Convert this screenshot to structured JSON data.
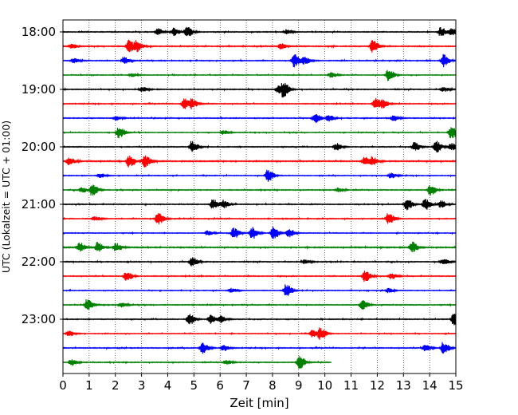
{
  "chart_data": {
    "type": "line",
    "title": "",
    "xlabel": "Zeit  [min]",
    "ylabel": "UTC (Lokalzeit = UTC + 01:00)",
    "xlim": [
      0,
      15
    ],
    "x_ticks": [
      0,
      1,
      2,
      3,
      4,
      5,
      6,
      7,
      8,
      9,
      10,
      11,
      12,
      13,
      14,
      15
    ],
    "x_grid": true,
    "y_ticks": [
      {
        "label": "18:00",
        "trace_index": 0
      },
      {
        "label": "19:00",
        "trace_index": 4
      },
      {
        "label": "20:00",
        "trace_index": 8
      },
      {
        "label": "21:00",
        "trace_index": 12
      },
      {
        "label": "22:00",
        "trace_index": 16
      },
      {
        "label": "23:00",
        "trace_index": 20
      }
    ],
    "colors": [
      "#000000",
      "#ff0000",
      "#0000ff",
      "#008000"
    ],
    "traces": [
      {
        "start": "18:00",
        "color": "#000000",
        "end_min": 15,
        "amp": 0.35,
        "events": [
          [
            3.6,
            0.6
          ],
          [
            4.2,
            0.7
          ],
          [
            4.7,
            1.0
          ],
          [
            8.5,
            0.4
          ],
          [
            14.4,
            0.8
          ],
          [
            14.8,
            0.6
          ]
        ]
      },
      {
        "start": "18:15",
        "color": "#ff0000",
        "end_min": 15,
        "amp": 0.4,
        "events": [
          [
            0.3,
            0.4
          ],
          [
            2.5,
            1.1
          ],
          [
            2.8,
            0.8
          ],
          [
            8.3,
            0.5
          ],
          [
            11.8,
            1.1
          ]
        ]
      },
      {
        "start": "18:30",
        "color": "#0000ff",
        "end_min": 15,
        "amp": 0.35,
        "events": [
          [
            0.4,
            0.4
          ],
          [
            2.3,
            0.6
          ],
          [
            8.8,
            1.2
          ],
          [
            9.2,
            0.6
          ],
          [
            14.5,
            1.1
          ]
        ]
      },
      {
        "start": "18:45",
        "color": "#008000",
        "end_min": 15,
        "amp": 0.3,
        "events": [
          [
            2.6,
            0.3
          ],
          [
            10.2,
            0.5
          ],
          [
            12.4,
            1.1
          ]
        ]
      },
      {
        "start": "19:00",
        "color": "#000000",
        "end_min": 15,
        "amp": 0.35,
        "events": [
          [
            3.0,
            0.4
          ],
          [
            8.4,
            1.1
          ],
          [
            8.2,
            0.7
          ],
          [
            14.5,
            0.4
          ]
        ]
      },
      {
        "start": "19:15",
        "color": "#ff0000",
        "end_min": 15,
        "amp": 0.35,
        "events": [
          [
            4.6,
            1.0
          ],
          [
            4.9,
            0.7
          ],
          [
            11.9,
            1.0
          ],
          [
            12.2,
            0.6
          ]
        ]
      },
      {
        "start": "19:30",
        "color": "#0000ff",
        "end_min": 15,
        "amp": 0.35,
        "events": [
          [
            2.0,
            0.4
          ],
          [
            9.6,
            0.9
          ],
          [
            10.1,
            0.6
          ],
          [
            12.6,
            0.5
          ]
        ]
      },
      {
        "start": "19:45",
        "color": "#008000",
        "end_min": 15,
        "amp": 0.3,
        "events": [
          [
            2.1,
            1.0
          ],
          [
            6.1,
            0.4
          ],
          [
            14.8,
            1.1
          ]
        ]
      },
      {
        "start": "20:00",
        "color": "#000000",
        "end_min": 15,
        "amp": 0.35,
        "events": [
          [
            4.9,
            1.0
          ],
          [
            10.4,
            0.7
          ],
          [
            13.4,
            0.8
          ],
          [
            14.2,
            1.1
          ],
          [
            14.8,
            0.7
          ]
        ]
      },
      {
        "start": "20:15",
        "color": "#ff0000",
        "end_min": 15,
        "amp": 0.45,
        "events": [
          [
            0.2,
            0.7
          ],
          [
            2.5,
            1.1
          ],
          [
            3.1,
            1.0
          ],
          [
            11.5,
            0.8
          ],
          [
            11.8,
            0.6
          ]
        ]
      },
      {
        "start": "20:30",
        "color": "#0000ff",
        "end_min": 15,
        "amp": 0.3,
        "events": [
          [
            1.4,
            0.4
          ],
          [
            7.8,
            1.1
          ],
          [
            12.5,
            0.5
          ]
        ]
      },
      {
        "start": "20:45",
        "color": "#008000",
        "end_min": 15,
        "amp": 0.35,
        "events": [
          [
            1.1,
            1.0
          ],
          [
            0.7,
            0.5
          ],
          [
            10.5,
            0.4
          ],
          [
            14.0,
            1.0
          ]
        ]
      },
      {
        "start": "21:00",
        "color": "#000000",
        "end_min": 15,
        "amp": 0.35,
        "events": [
          [
            5.7,
            0.9
          ],
          [
            6.1,
            0.7
          ],
          [
            13.1,
            1.0
          ],
          [
            13.8,
            1.0
          ],
          [
            14.4,
            0.6
          ]
        ]
      },
      {
        "start": "21:15",
        "color": "#ff0000",
        "end_min": 15,
        "amp": 0.35,
        "events": [
          [
            1.2,
            0.4
          ],
          [
            3.6,
            1.1
          ],
          [
            12.4,
            1.0
          ]
        ]
      },
      {
        "start": "21:30",
        "color": "#0000ff",
        "end_min": 15,
        "amp": 0.3,
        "events": [
          [
            6.5,
            1.0
          ],
          [
            7.2,
            1.1
          ],
          [
            8.0,
            1.2
          ],
          [
            8.6,
            0.8
          ],
          [
            5.5,
            0.4
          ]
        ]
      },
      {
        "start": "21:45",
        "color": "#008000",
        "end_min": 15,
        "amp": 0.45,
        "events": [
          [
            0.6,
            0.8
          ],
          [
            1.3,
            0.9
          ],
          [
            2.0,
            0.7
          ],
          [
            13.3,
            1.0
          ]
        ]
      },
      {
        "start": "22:00",
        "color": "#000000",
        "end_min": 15,
        "amp": 0.35,
        "events": [
          [
            4.9,
            0.8
          ],
          [
            9.2,
            0.4
          ],
          [
            14.5,
            0.5
          ]
        ]
      },
      {
        "start": "22:15",
        "color": "#ff0000",
        "end_min": 15,
        "amp": 0.35,
        "events": [
          [
            2.4,
            0.9
          ],
          [
            11.5,
            1.1
          ],
          [
            12.5,
            0.5
          ]
        ]
      },
      {
        "start": "22:30",
        "color": "#0000ff",
        "end_min": 15,
        "amp": 0.3,
        "events": [
          [
            6.4,
            0.4
          ],
          [
            8.5,
            1.1
          ],
          [
            12.4,
            0.4
          ]
        ]
      },
      {
        "start": "22:45",
        "color": "#008000",
        "end_min": 15,
        "amp": 0.35,
        "events": [
          [
            0.9,
            1.0
          ],
          [
            2.2,
            0.4
          ],
          [
            11.4,
            1.0
          ]
        ]
      },
      {
        "start": "23:00",
        "color": "#000000",
        "end_min": 15,
        "amp": 0.35,
        "events": [
          [
            4.8,
            1.0
          ],
          [
            5.6,
            0.8
          ],
          [
            6.0,
            0.6
          ],
          [
            14.9,
            1.1
          ]
        ]
      },
      {
        "start": "23:15",
        "color": "#ff0000",
        "end_min": 15,
        "amp": 0.3,
        "events": [
          [
            0.2,
            0.5
          ],
          [
            9.8,
            1.0
          ],
          [
            9.5,
            0.6
          ]
        ]
      },
      {
        "start": "23:30",
        "color": "#0000ff",
        "end_min": 15,
        "amp": 0.35,
        "events": [
          [
            5.3,
            1.0
          ],
          [
            6.1,
            0.5
          ],
          [
            14.5,
            1.1
          ],
          [
            13.8,
            0.6
          ]
        ]
      },
      {
        "start": "23:45",
        "color": "#008000",
        "end_min": 10.25,
        "amp": 0.35,
        "events": [
          [
            0.3,
            0.6
          ],
          [
            9.0,
            1.2
          ],
          [
            6.2,
            0.4
          ]
        ]
      }
    ]
  }
}
